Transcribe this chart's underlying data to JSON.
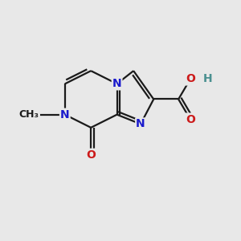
{
  "background_color": "#e8e8e8",
  "bond_color": "#1a1a1a",
  "nitrogen_color": "#1a1acc",
  "oxygen_color": "#cc1a1a",
  "oh_h_color": "#4a9090",
  "bond_width": 1.6,
  "font_size_atom": 10,
  "fig_width": 3.0,
  "fig_height": 3.0,
  "dpi": 100,
  "xlim": [
    0,
    10
  ],
  "ylim": [
    0,
    10
  ]
}
